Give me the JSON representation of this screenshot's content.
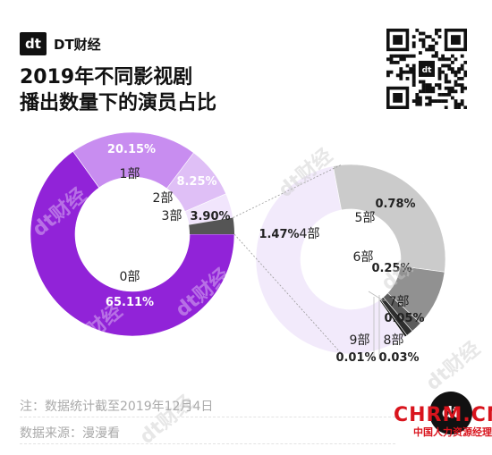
{
  "brand": {
    "logo_text": "dt",
    "name": "DT财经"
  },
  "title_lines": [
    "2019年不同影视剧",
    "播出数量下的演员占比"
  ],
  "footer": {
    "note": "注：数据统计截至2019年12月4日",
    "source": "数据来源：漫漫看"
  },
  "watermark": "dt财经",
  "stamp": {
    "logo_text": "dt"
  },
  "site_mark": {
    "word": "CHRM.CN",
    "chinese": "中国人力资源经理"
  },
  "colors": {
    "part0": "#9123d8",
    "part1": "#c88df0",
    "part2": "#dfbff6",
    "part3": "#f1e5fc",
    "part4": "#f2eafb",
    "part5": "#cbcbcb",
    "part6": "#919191",
    "part7": "#5c5c5c",
    "part8": "#2e2e2e",
    "part9": "#111111"
  },
  "chart_data": {
    "type": "pie",
    "title": "2019年不同影视剧播出数量下的演员占比",
    "main_slices": [
      {
        "label": "0部",
        "value": 65.11,
        "value_label": "65.11%"
      },
      {
        "label": "1部",
        "value": 20.15,
        "value_label": "20.15%"
      },
      {
        "label": "2部",
        "value": 8.25,
        "value_label": "8.25%"
      },
      {
        "label": "3部",
        "value": 3.9,
        "value_label": "3.90%"
      }
    ],
    "detail_slices": [
      {
        "label": "4部",
        "value": 1.47,
        "value_label": "1.47%"
      },
      {
        "label": "5部",
        "value": 0.78,
        "value_label": "0.78%"
      },
      {
        "label": "6部",
        "value": 0.25,
        "value_label": "0.25%"
      },
      {
        "label": "7部",
        "value": 0.05,
        "value_label": "0.05%"
      },
      {
        "label": "8部",
        "value": 0.03,
        "value_label": "0.03%"
      },
      {
        "label": "9部",
        "value": 0.01,
        "value_label": "0.01%"
      }
    ]
  }
}
